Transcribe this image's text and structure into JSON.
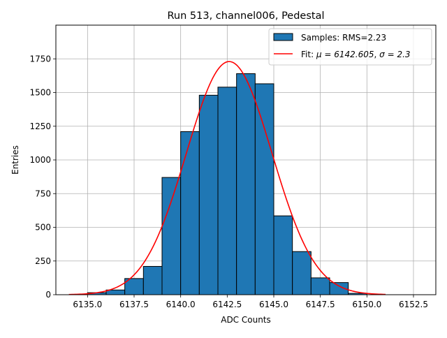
{
  "chart_data": {
    "type": "bar",
    "title": "Run 513, channel006, Pedestal",
    "xlabel": "ADC Counts",
    "ylabel": "Entries",
    "xlim": [
      6133.3,
      6153.7
    ],
    "ylim": [
      0,
      2000
    ],
    "grid": true,
    "legend_position": "top-right",
    "x_ticks": [
      6135.0,
      6137.5,
      6140.0,
      6142.5,
      6145.0,
      6147.5,
      6150.0,
      6152.5
    ],
    "x_tick_labels": [
      "6135.0",
      "6137.5",
      "6140.0",
      "6142.5",
      "6145.0",
      "6147.5",
      "6150.0",
      "6152.5"
    ],
    "y_ticks": [
      0,
      250,
      500,
      750,
      1000,
      1250,
      1500,
      1750
    ],
    "y_tick_labels": [
      "0",
      "250",
      "500",
      "750",
      "1000",
      "1250",
      "1500",
      "1750"
    ],
    "histogram": {
      "name": "Samples: RMS=2.23",
      "color": "#1f77b4",
      "bin_edges": [
        6135,
        6136,
        6137,
        6138,
        6139,
        6140,
        6141,
        6142,
        6143,
        6144,
        6145,
        6146,
        6147,
        6148,
        6149,
        6150
      ],
      "values": [
        15,
        35,
        120,
        210,
        870,
        1210,
        1480,
        1540,
        1640,
        1565,
        585,
        320,
        125,
        90,
        10
      ]
    },
    "fit": {
      "name": "Fit: μ = 6142.605, σ = 2.3",
      "label_prefix": "Fit: ",
      "mu_text": "μ = 6142.605",
      "sigma_text": "σ = 2.3",
      "color": "#ff0000",
      "mu": 6142.605,
      "sigma": 2.3,
      "amplitude": 1730,
      "x_range": [
        6134,
        6151
      ]
    }
  }
}
